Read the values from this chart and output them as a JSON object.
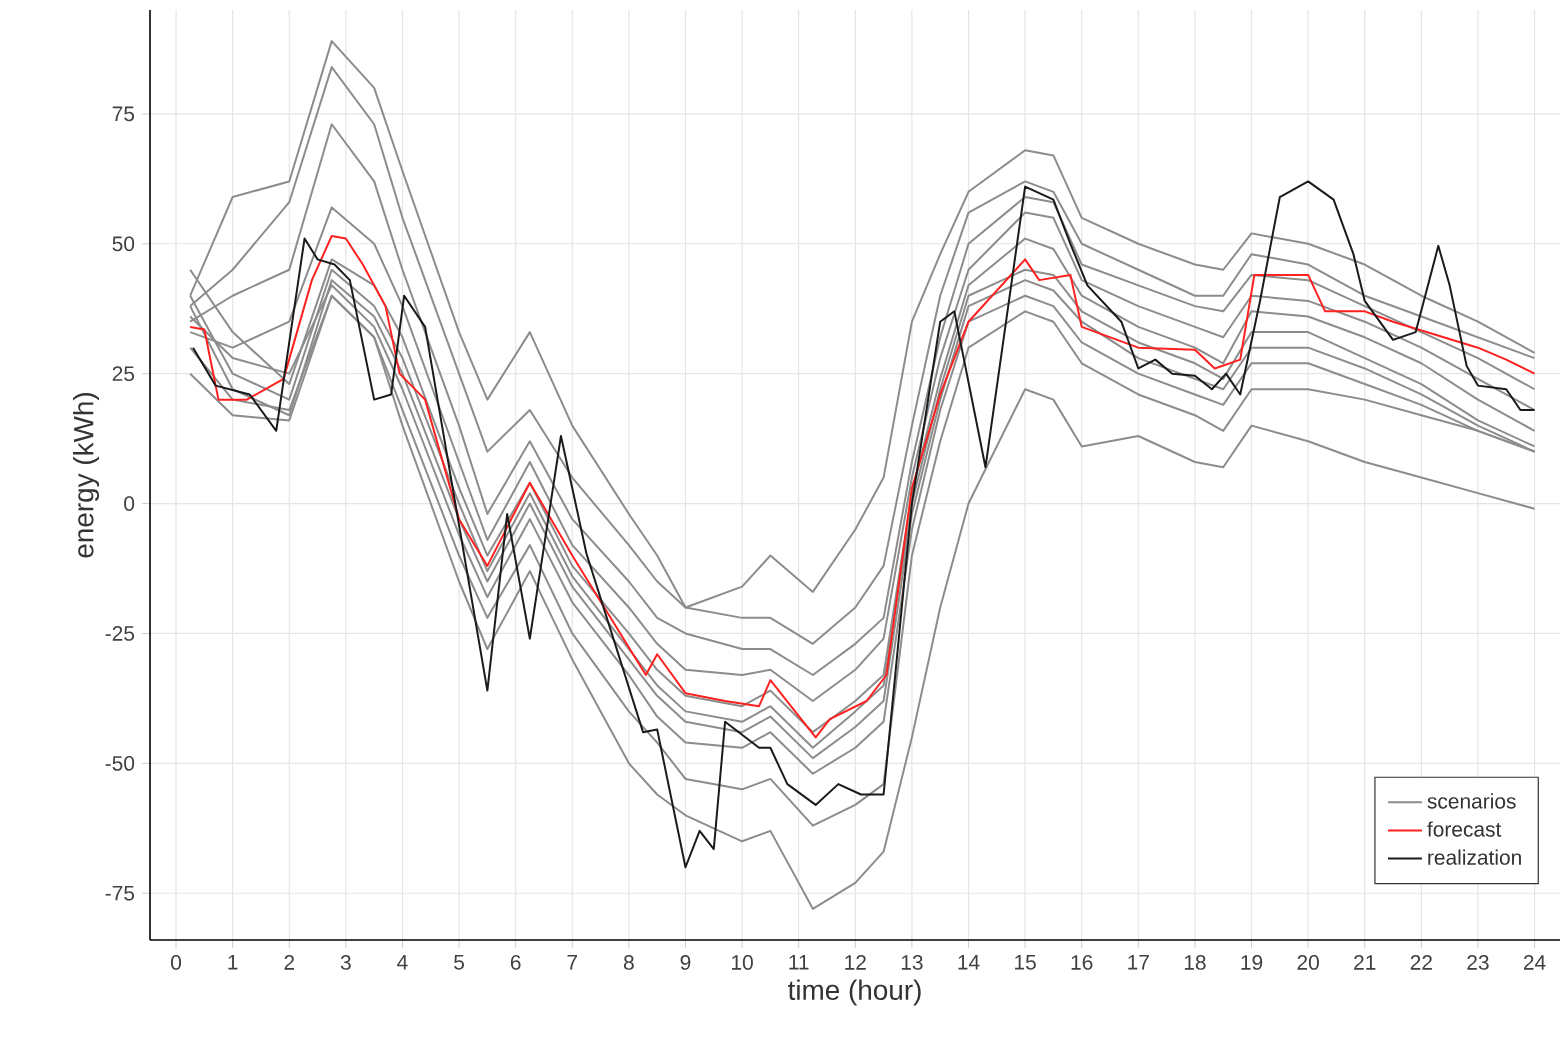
{
  "chart_data": {
    "type": "line",
    "xlabel": "time (hour)",
    "ylabel": "energy (kWh)",
    "xlim": [
      -0.46,
      24.45
    ],
    "ylim": [
      -84,
      95
    ],
    "xticks": [
      0,
      1,
      2,
      3,
      4,
      5,
      6,
      7,
      8,
      9,
      10,
      11,
      12,
      13,
      14,
      15,
      16,
      17,
      18,
      19,
      20,
      21,
      22,
      23,
      24
    ],
    "yticks": [
      -75,
      -50,
      -25,
      0,
      25,
      50,
      75
    ],
    "grid": true,
    "legend": "bottom right",
    "marker": "none",
    "line_style": "solid",
    "series": [
      {
        "name": "scenarios",
        "color": "#8c8c8c",
        "x": [
          0.25,
          1,
          2,
          2.75,
          3.5,
          4,
          5,
          5.5,
          6.25,
          7,
          8,
          8.5,
          9,
          10,
          10.5,
          11.25,
          12,
          12.5,
          13,
          13.5,
          14,
          15,
          15.5,
          16,
          17,
          18,
          18.5,
          19,
          20,
          21,
          22,
          23,
          24
        ],
        "values": [
          40,
          59,
          62,
          89,
          80,
          64,
          33,
          20,
          33,
          15,
          -2,
          -10,
          -20,
          -16,
          -10,
          -17,
          -5,
          5,
          35,
          48,
          60,
          68,
          67,
          55,
          50,
          46,
          45,
          52,
          50,
          46,
          40,
          35,
          29
        ]
      },
      {
        "color": "#8c8c8c",
        "x": [
          0.25,
          1,
          2,
          2.75,
          3.5,
          4,
          5,
          5.5,
          6.25,
          7,
          8,
          8.5,
          9,
          10,
          10.5,
          11.25,
          12,
          12.5,
          13,
          13.5,
          14,
          15,
          15.5,
          16,
          17,
          18,
          18.5,
          19,
          20,
          21,
          22,
          23,
          24
        ],
        "values": [
          38,
          45,
          58,
          84,
          73,
          55,
          25,
          10,
          18,
          5,
          -8,
          -15,
          -20,
          -22,
          -22,
          -27,
          -20,
          -12,
          15,
          40,
          56,
          62,
          60,
          50,
          45,
          40,
          40,
          48,
          46,
          40,
          36,
          32,
          28
        ]
      },
      {
        "color": "#8c8c8c",
        "x": [
          0.25,
          1,
          2,
          2.75,
          3.5,
          4,
          5,
          5.5,
          6.25,
          7,
          8,
          8.5,
          9,
          10,
          10.5,
          11.25,
          12,
          12.5,
          13,
          13.5,
          14,
          15,
          15.5,
          16,
          17,
          18,
          18.5,
          19,
          20,
          21,
          22,
          23,
          24
        ],
        "values": [
          35,
          40,
          45,
          73,
          62,
          45,
          15,
          -2,
          12,
          -3,
          -15,
          -22,
          -25,
          -28,
          -28,
          -33,
          -27,
          -22,
          8,
          32,
          50,
          59,
          58,
          46,
          42,
          38,
          37,
          44,
          43,
          38,
          33,
          28,
          22
        ]
      },
      {
        "color": "#8c8c8c",
        "x": [
          0.25,
          1,
          2,
          2.75,
          3.5,
          4,
          5,
          5.5,
          6.25,
          7,
          8,
          8.5,
          9,
          10,
          10.5,
          11.25,
          12,
          12.5,
          13,
          13.5,
          14,
          15,
          15.5,
          16,
          17,
          18,
          18.5,
          19,
          20,
          21,
          22,
          23,
          24
        ],
        "values": [
          33,
          30,
          35,
          57,
          50,
          38,
          8,
          -7,
          8,
          -8,
          -20,
          -27,
          -32,
          -33,
          -32,
          -38,
          -32,
          -26,
          5,
          28,
          45,
          56,
          55,
          43,
          38,
          34,
          32,
          40,
          39,
          35,
          30,
          24,
          18
        ]
      },
      {
        "color": "#8c8c8c",
        "x": [
          0.25,
          1,
          2,
          2.75,
          3.5,
          4,
          5,
          5.5,
          6.25,
          7,
          8,
          8.5,
          9,
          10,
          10.5,
          11.25,
          12,
          12.5,
          13,
          13.5,
          14,
          15,
          15.5,
          16,
          17,
          18,
          18.5,
          19,
          20,
          21,
          22,
          23,
          24
        ],
        "values": [
          45,
          33,
          23,
          47,
          42,
          32,
          3,
          -10,
          4,
          -12,
          -25,
          -32,
          -37,
          -39,
          -36,
          -44,
          -38,
          -33,
          2,
          24,
          42,
          51,
          49,
          40,
          34,
          30,
          27,
          37,
          36,
          32,
          27,
          20,
          14
        ]
      },
      {
        "color": "#8c8c8c",
        "x": [
          0.25,
          1,
          2,
          2.75,
          3.5,
          4,
          5,
          5.5,
          6.25,
          7,
          8,
          8.5,
          9,
          10,
          10.5,
          11.25,
          12,
          12.5,
          13,
          13.5,
          14,
          15,
          15.5,
          16,
          17,
          18,
          18.5,
          19,
          20,
          21,
          22,
          23,
          24
        ],
        "values": [
          40,
          25,
          20,
          45,
          38,
          28,
          0,
          -13,
          2,
          -14,
          -28,
          -35,
          -40,
          -42,
          -39,
          -47,
          -40,
          -35,
          0,
          22,
          40,
          45,
          44,
          37,
          31,
          27,
          24,
          33,
          33,
          28,
          23,
          16,
          11
        ]
      },
      {
        "color": "#8c8c8c",
        "x": [
          0.25,
          1,
          2,
          2.75,
          3.5,
          4,
          5,
          5.5,
          6.25,
          7,
          8,
          8.5,
          9,
          10,
          10.5,
          11.25,
          12,
          12.5,
          13,
          13.5,
          14,
          15,
          15.5,
          16,
          17,
          18,
          18.5,
          19,
          20,
          21,
          22,
          23,
          24
        ],
        "values": [
          38,
          22,
          17,
          43,
          36,
          25,
          -3,
          -15,
          0,
          -16,
          -30,
          -37,
          -42,
          -44,
          -41,
          -49,
          -43,
          -38,
          -2,
          20,
          38,
          43,
          41,
          35,
          28,
          24,
          22,
          30,
          30,
          26,
          21,
          15,
          10
        ]
      },
      {
        "color": "#8c8c8c",
        "x": [
          0.25,
          1,
          2,
          2.75,
          3.5,
          4,
          5,
          5.5,
          6.25,
          7,
          8,
          8.5,
          9,
          10,
          10.5,
          11.25,
          12,
          12.5,
          13,
          13.5,
          14,
          15,
          15.5,
          16,
          17,
          18,
          18.5,
          19,
          20,
          21,
          22,
          23,
          24
        ],
        "values": [
          36,
          28,
          25,
          42,
          34,
          22,
          -6,
          -18,
          -3,
          -19,
          -33,
          -41,
          -46,
          -47,
          -44,
          -52,
          -47,
          -42,
          -5,
          18,
          35,
          40,
          38,
          31,
          25,
          21,
          19,
          27,
          27,
          23,
          19,
          14,
          10
        ]
      },
      {
        "color": "#8c8c8c",
        "x": [
          0.25,
          1,
          2,
          2.75,
          3.5,
          4,
          5,
          5.5,
          6.25,
          7,
          8,
          8.5,
          9,
          10,
          10.5,
          11.25,
          12,
          12.5,
          13,
          13.5,
          14,
          15,
          15.5,
          16,
          17,
          18,
          18.5,
          19,
          20,
          21,
          22,
          23,
          24
        ],
        "values": [
          30,
          20,
          18,
          40,
          32,
          18,
          -10,
          -22,
          -8,
          -25,
          -40,
          -46,
          -53,
          -55,
          -53,
          -62,
          -58,
          -54,
          -10,
          12,
          30,
          37,
          35,
          27,
          21,
          17,
          14,
          22,
          22,
          20,
          17,
          14,
          10
        ]
      },
      {
        "color": "#8c8c8c",
        "x": [
          0.25,
          1,
          2,
          2.75,
          3.5,
          4,
          5,
          5.5,
          6.25,
          7,
          8,
          8.5,
          9,
          10,
          10.5,
          11.25,
          12,
          12.5,
          13,
          13.5,
          14,
          15,
          15.5,
          16,
          17,
          18,
          18.5,
          19,
          20,
          21,
          22,
          23,
          24
        ],
        "values": [
          25,
          17,
          16,
          40,
          32,
          15,
          -15,
          -28,
          -13,
          -30,
          -50,
          -56,
          -60,
          -65,
          -63,
          -78,
          -73,
          -67,
          -45,
          -20,
          0,
          22,
          20,
          11,
          13,
          8,
          7,
          15,
          12,
          8,
          5,
          2,
          -1
        ]
      },
      {
        "name": "forecast",
        "color": "#ff2020",
        "x": [
          0.25,
          0.5,
          0.75,
          1.25,
          1.9,
          2.4,
          2.75,
          3,
          3.3,
          3.7,
          3.95,
          4.4,
          5,
          5.5,
          6.25,
          7,
          8.3,
          8.5,
          9,
          9.7,
          10.3,
          10.5,
          11.3,
          11.55,
          12.2,
          12.55,
          13,
          13.5,
          14,
          15,
          15.25,
          15.8,
          16,
          17,
          18,
          18.35,
          18.8,
          19.05,
          20,
          20.3,
          21,
          21.5,
          23,
          23.5,
          24
        ],
        "values": [
          34,
          33.5,
          20,
          20,
          24,
          43,
          51.5,
          51,
          46,
          38,
          25,
          20,
          -3,
          -12,
          4,
          -10,
          -33,
          -29,
          -36.5,
          -38,
          -39,
          -34,
          -45,
          -41.5,
          -38,
          -33,
          3,
          21,
          35,
          47,
          43,
          44,
          34,
          30,
          29.6,
          26,
          27.7,
          44,
          44,
          37,
          37,
          35,
          30,
          27.7,
          25
        ]
      },
      {
        "name": "realization",
        "color": "#1a1a1a",
        "x": [
          0.3,
          0.7,
          1.3,
          1.77,
          2.27,
          2.5,
          2.8,
          3.07,
          3.5,
          3.8,
          4.03,
          4.4,
          5.5,
          5.85,
          6.25,
          6.8,
          7.25,
          8.25,
          8.5,
          9,
          9.25,
          9.5,
          9.7,
          10.3,
          10.5,
          10.8,
          11.3,
          11.7,
          12.1,
          12.5,
          13,
          13.5,
          13.75,
          14.3,
          15,
          15.5,
          15.8,
          16.1,
          16.7,
          17,
          17.3,
          17.6,
          18,
          18.3,
          18.55,
          18.8,
          19.15,
          19.5,
          20,
          20.45,
          20.8,
          21,
          21.5,
          21.9,
          22.3,
          22.5,
          22.8,
          23,
          23.5,
          23.75,
          24
        ],
        "values": [
          30,
          22.7,
          21,
          14,
          51,
          47,
          46,
          43,
          20,
          21,
          40,
          34,
          -36,
          -2,
          -26,
          13,
          -9.6,
          -44,
          -43.5,
          -70,
          -63,
          -66.5,
          -42,
          -47,
          -47,
          -54,
          -58,
          -54,
          -56,
          -56,
          0,
          35,
          37,
          7,
          61,
          58.5,
          50,
          42,
          35,
          26,
          27.7,
          25,
          24.6,
          22,
          25,
          21,
          39,
          59,
          62,
          58.5,
          48,
          39,
          31.5,
          33,
          49.6,
          42,
          26.5,
          22.7,
          22,
          18,
          18
        ]
      }
    ]
  }
}
